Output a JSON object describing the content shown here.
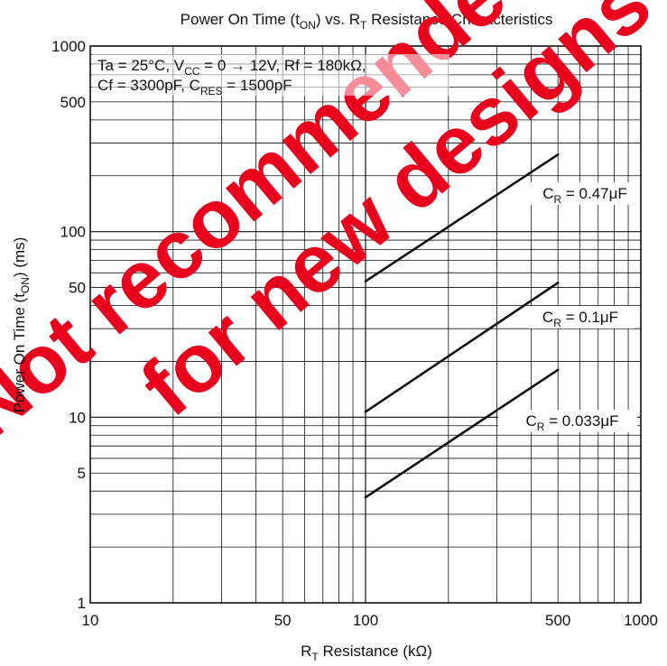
{
  "chart_data": {
    "type": "line",
    "title": "Power On Time (tON) vs. RT Resistance Characteristics",
    "title_parts": {
      "a": "Power On Time (t",
      "sub": "ON",
      "b": ") vs. R",
      "sub2": "T",
      "c": " Resistance Characteristics"
    },
    "xlabel_parts": {
      "a": "R",
      "sub": "T",
      "b": " Resistance (kΩ)"
    },
    "ylabel_parts": {
      "a": "Power On Time (t",
      "sub": "ON",
      "b": ") (ms)"
    },
    "x_scale": "log",
    "y_scale": "log",
    "xlim": [
      10,
      1000
    ],
    "ylim": [
      1,
      1000
    ],
    "x_ticks": [
      10,
      50,
      100,
      500,
      1000
    ],
    "y_ticks": [
      1,
      5,
      10,
      50,
      100,
      500,
      1000
    ],
    "grid": true,
    "conditions": {
      "line1": {
        "a": "Ta = 25°C, V",
        "sub": "CC",
        "b": " = 0 → 12V, Rf = 180kΩ,"
      },
      "line2": {
        "a": "Cf = 3300pF, C",
        "sub": "RES",
        "b": " = 1500pF"
      }
    },
    "series": [
      {
        "name": "CR = 0.47μF",
        "label_main": "C",
        "label_sub": "R",
        "label_tail": " = 0.47μF",
        "x": [
          100,
          500
        ],
        "y": [
          54,
          260
        ]
      },
      {
        "name": "CR = 0.1μF",
        "label_main": "C",
        "label_sub": "R",
        "label_tail": " = 0.1μF",
        "x": [
          100,
          500
        ],
        "y": [
          10.7,
          53
        ]
      },
      {
        "name": "CR = 0.033μF",
        "label_main": "C",
        "label_sub": "R",
        "label_tail": " = 0.033μF",
        "x": [
          100,
          500
        ],
        "y": [
          3.7,
          18
        ]
      }
    ],
    "watermark": "Not recommended for new designs",
    "watermark_color": "#e8001c"
  }
}
